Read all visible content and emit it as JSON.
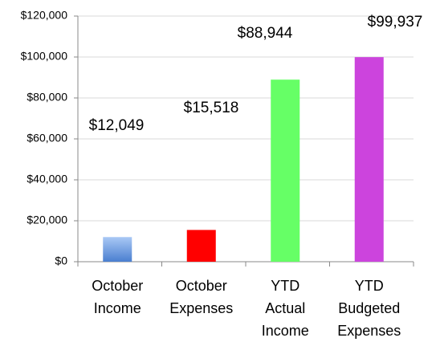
{
  "chart_data": {
    "type": "bar",
    "categories": [
      [
        "October",
        "Income"
      ],
      [
        "October",
        "Expenses"
      ],
      [
        "YTD",
        "Actual",
        "Income"
      ],
      [
        "YTD",
        "Budgeted",
        "Expenses"
      ]
    ],
    "values": [
      12049,
      15518,
      88944,
      99937
    ],
    "value_labels": [
      "$12,049",
      "$15,518",
      "$88,944",
      "$99,937"
    ],
    "colors": [
      "#4a7fd0",
      "#ff0000",
      "#66ff66",
      "#cc44dd"
    ],
    "ylim": [
      0,
      120000
    ],
    "yticks": [
      {
        "value": 0,
        "label": "$0"
      },
      {
        "value": 20000,
        "label": "$20,000"
      },
      {
        "value": 40000,
        "label": "$40,000"
      },
      {
        "value": 60000,
        "label": "$60,000"
      },
      {
        "value": 80000,
        "label": "$80,000"
      },
      {
        "value": 100000,
        "label": "$100,000"
      },
      {
        "value": 120000,
        "label": "$120,000"
      }
    ],
    "grid": true
  }
}
